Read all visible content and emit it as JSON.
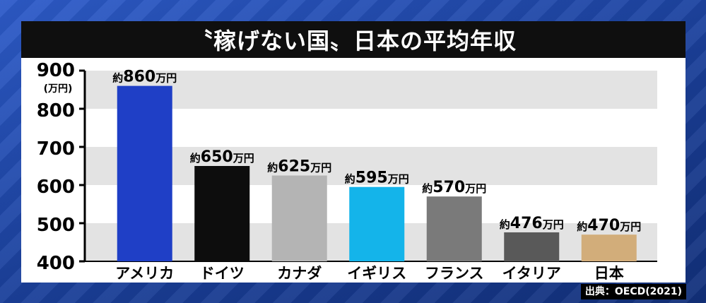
{
  "chart_data": {
    "type": "bar",
    "title": "〝稼げない国〟日本の平均年収",
    "ylabel": "(万円)",
    "ylim": [
      400,
      900
    ],
    "yticks": [
      400,
      500,
      600,
      700,
      800,
      900
    ],
    "categories": [
      "アメリカ",
      "ドイツ",
      "カナダ",
      "イギリス",
      "フランス",
      "イタリア",
      "日本"
    ],
    "values": [
      860,
      650,
      625,
      595,
      570,
      476,
      470
    ],
    "data_labels": [
      "約860万円",
      "約650万円",
      "約625万円",
      "約595万円",
      "約570万円",
      "約476万円",
      "約470万円"
    ],
    "colors": [
      "#1f3fc6",
      "#0d0d0d",
      "#b4b4b4",
      "#14b4ea",
      "#7a7a7a",
      "#595959",
      "#d2ad7a"
    ],
    "grid": "horizontal bands"
  },
  "source": "出典：OECD(2021)"
}
